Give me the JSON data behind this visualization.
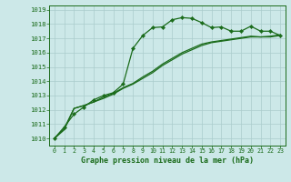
{
  "title": "Graphe pression niveau de la mer (hPa)",
  "bg_color": "#cce8e8",
  "grid_color": "#aacccc",
  "line_color": "#1a6b1a",
  "spine_color": "#1a6b1a",
  "xlim": [
    -0.5,
    23.5
  ],
  "ylim": [
    1009.5,
    1019.3
  ],
  "yticks": [
    1010,
    1011,
    1012,
    1013,
    1014,
    1015,
    1016,
    1017,
    1018,
    1019
  ],
  "xticks": [
    0,
    1,
    2,
    3,
    4,
    5,
    6,
    7,
    8,
    9,
    10,
    11,
    12,
    13,
    14,
    15,
    16,
    17,
    18,
    19,
    20,
    21,
    22,
    23
  ],
  "series1_x": [
    0,
    1,
    2,
    3,
    4,
    5,
    6,
    7,
    8,
    9,
    10,
    11,
    12,
    13,
    14,
    15,
    16,
    17,
    18,
    19,
    20,
    21,
    22,
    23
  ],
  "series1_y": [
    1010.0,
    1010.8,
    1011.7,
    1012.2,
    1012.7,
    1013.0,
    1013.2,
    1013.8,
    1016.3,
    1017.2,
    1017.75,
    1017.8,
    1018.3,
    1018.45,
    1018.4,
    1018.1,
    1017.75,
    1017.8,
    1017.5,
    1017.5,
    1017.85,
    1017.5,
    1017.5,
    1017.2
  ],
  "series2_x": [
    0,
    1,
    2,
    3,
    4,
    5,
    6,
    7,
    8,
    9,
    10,
    11,
    12,
    13,
    14,
    15,
    16,
    17,
    18,
    19,
    20,
    21,
    22,
    23
  ],
  "series2_y": [
    1010.0,
    1010.7,
    1012.1,
    1012.3,
    1012.55,
    1012.8,
    1013.1,
    1013.5,
    1013.8,
    1014.2,
    1014.6,
    1015.1,
    1015.5,
    1015.9,
    1016.2,
    1016.5,
    1016.7,
    1016.8,
    1016.9,
    1017.0,
    1017.1,
    1017.1,
    1017.1,
    1017.2
  ],
  "series3_x": [
    0,
    1,
    2,
    3,
    4,
    5,
    6,
    7,
    8,
    9,
    10,
    11,
    12,
    13,
    14,
    15,
    16,
    17,
    18,
    19,
    20,
    21,
    22,
    23
  ],
  "series3_y": [
    1010.0,
    1010.6,
    1012.1,
    1012.3,
    1012.55,
    1012.9,
    1013.15,
    1013.55,
    1013.85,
    1014.3,
    1014.7,
    1015.2,
    1015.6,
    1016.0,
    1016.3,
    1016.6,
    1016.75,
    1016.85,
    1016.95,
    1017.05,
    1017.15,
    1017.1,
    1017.15,
    1017.25
  ]
}
